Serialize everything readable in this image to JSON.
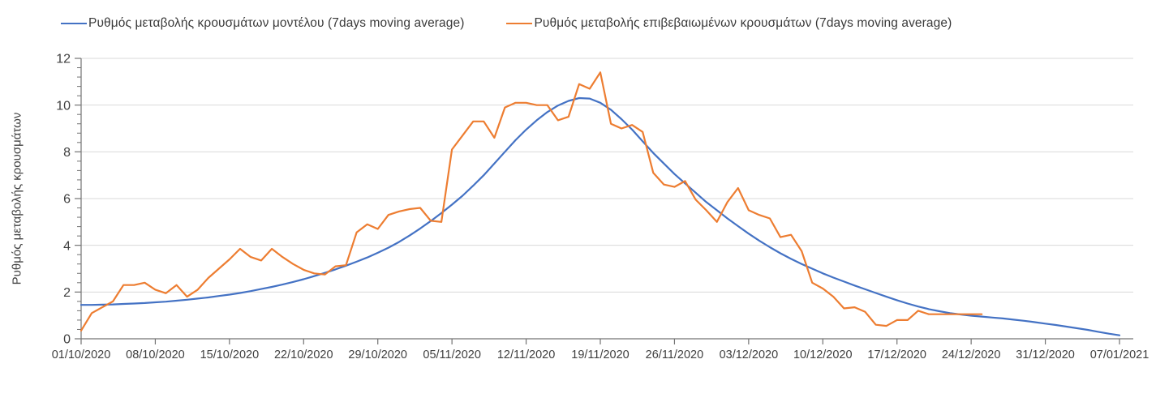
{
  "chart_data": {
    "type": "line",
    "title": "",
    "ylabel": "Ρυθμός μεταβολής κρουσμάτων",
    "xlabel": "",
    "ylim": [
      0,
      12
    ],
    "y_major_ticks": [
      0,
      2,
      4,
      6,
      8,
      10,
      12
    ],
    "y_minor_tick_step": 0.4,
    "grid": "horizontal-only",
    "legend_position": "top",
    "x_interval_days": 1,
    "x_tick_every_days": 7,
    "x_tick_labels": [
      "01/10/2020",
      "08/10/2020",
      "15/10/2020",
      "22/10/2020",
      "29/10/2020",
      "05/11/2020",
      "12/11/2020",
      "19/11/2020",
      "26/11/2020",
      "03/12/2020",
      "10/12/2020",
      "17/12/2020",
      "24/12/2020",
      "31/12/2020",
      "07/01/2021"
    ],
    "series": [
      {
        "name": "Ρυθμός μεταβολής κρουσμάτων μοντέλου (7days moving average)",
        "color": "#4472c4",
        "start_day": 0,
        "values": [
          1.45,
          1.45,
          1.46,
          1.47,
          1.49,
          1.51,
          1.53,
          1.56,
          1.59,
          1.63,
          1.67,
          1.72,
          1.77,
          1.83,
          1.89,
          1.96,
          2.04,
          2.13,
          2.22,
          2.32,
          2.43,
          2.55,
          2.68,
          2.82,
          2.97,
          3.13,
          3.3,
          3.48,
          3.68,
          3.9,
          4.14,
          4.42,
          4.72,
          5.04,
          5.38,
          5.74,
          6.12,
          6.55,
          7.0,
          7.5,
          8.0,
          8.5,
          8.95,
          9.35,
          9.7,
          9.98,
          10.18,
          10.3,
          10.28,
          10.1,
          9.8,
          9.4,
          8.95,
          8.45,
          7.95,
          7.5,
          7.05,
          6.65,
          6.25,
          5.85,
          5.5,
          5.15,
          4.82,
          4.5,
          4.2,
          3.92,
          3.66,
          3.42,
          3.2,
          3.0,
          2.8,
          2.62,
          2.45,
          2.28,
          2.12,
          1.96,
          1.8,
          1.65,
          1.51,
          1.38,
          1.27,
          1.18,
          1.1,
          1.04,
          0.99,
          0.95,
          0.91,
          0.87,
          0.82,
          0.77,
          0.71,
          0.65,
          0.59,
          0.52,
          0.45,
          0.38,
          0.3,
          0.22,
          0.15
        ]
      },
      {
        "name": "Ρυθμός μεταβολής επιβεβαιωμένων κρουσμάτων (7days moving average)",
        "color": "#ed7d31",
        "start_day": 0,
        "values": [
          0.35,
          1.1,
          1.35,
          1.6,
          2.3,
          2.3,
          2.4,
          2.1,
          1.95,
          2.3,
          1.8,
          2.1,
          2.6,
          3.0,
          3.4,
          3.85,
          3.5,
          3.35,
          3.85,
          3.5,
          3.2,
          2.95,
          2.8,
          2.75,
          3.1,
          3.15,
          4.55,
          4.9,
          4.7,
          5.3,
          5.45,
          5.55,
          5.6,
          5.05,
          5.0,
          8.1,
          8.7,
          9.3,
          9.3,
          8.6,
          9.9,
          10.1,
          10.1,
          10.0,
          10.0,
          9.35,
          9.5,
          10.9,
          10.7,
          11.4,
          9.2,
          9.0,
          9.15,
          8.85,
          7.1,
          6.6,
          6.5,
          6.75,
          5.95,
          5.5,
          5.0,
          5.85,
          6.45,
          5.5,
          5.3,
          5.15,
          4.35,
          4.45,
          3.75,
          2.4,
          2.15,
          1.8,
          1.3,
          1.35,
          1.15,
          0.6,
          0.55,
          0.8,
          0.8,
          1.2,
          1.05,
          1.05,
          1.05,
          1.05,
          1.05,
          1.05
        ]
      }
    ]
  },
  "style_colors": {
    "gridline": "#d9d9d9",
    "axis": "#737373",
    "tick_label": "#404040",
    "legend_text": "#3a3a3a",
    "background": "#ffffff"
  }
}
